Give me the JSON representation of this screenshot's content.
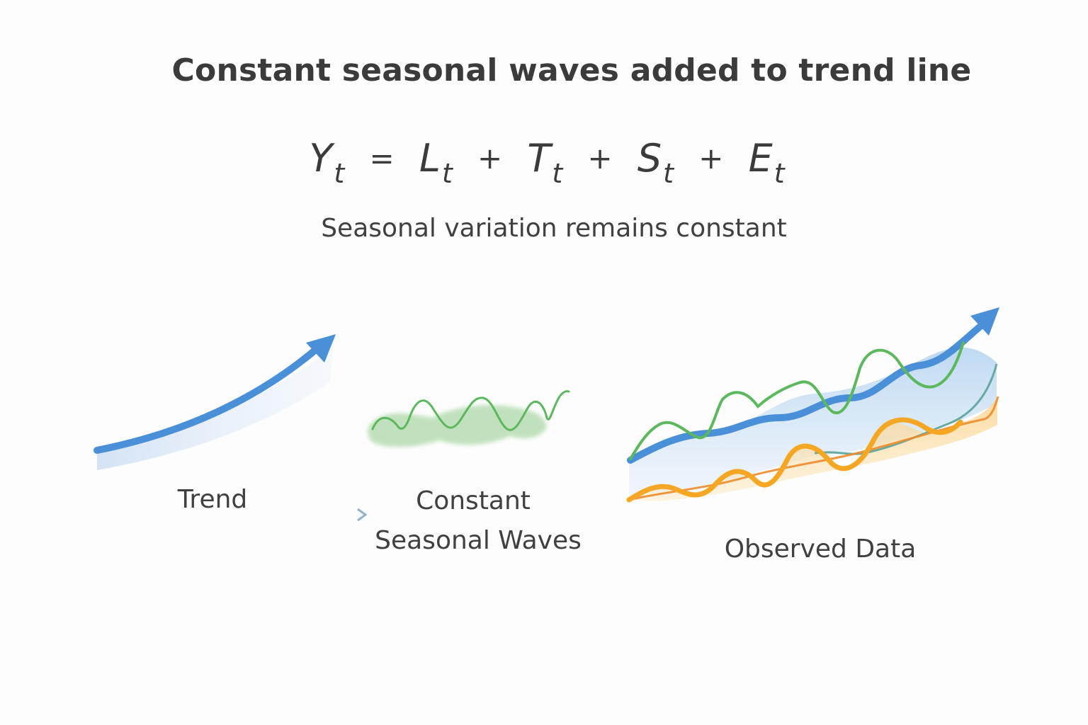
{
  "title": "Constant seasonal waves added to trend line",
  "equation": {
    "y": "Y",
    "y_sub": "t",
    "l": "L",
    "l_sub": "t",
    "t": "T",
    "t_sub": "t",
    "s": "S",
    "s_sub": "t",
    "e": "E",
    "e_sub": "t",
    "equals": "=",
    "plus": "+"
  },
  "subtitle": "Seasonal variation remains constant",
  "panels": {
    "trend_label": "Trend",
    "seasonal_label_line1": "Constant",
    "seasonal_label_line2": "Seasonal Waves",
    "observed_label": "Observed Data"
  },
  "colors": {
    "trend": "#4a90d9",
    "seasonal": "#5cb85c",
    "observed_secondary": "#f5a623",
    "baseline": "#9aa3ab",
    "connector": "#a9c3d8"
  }
}
